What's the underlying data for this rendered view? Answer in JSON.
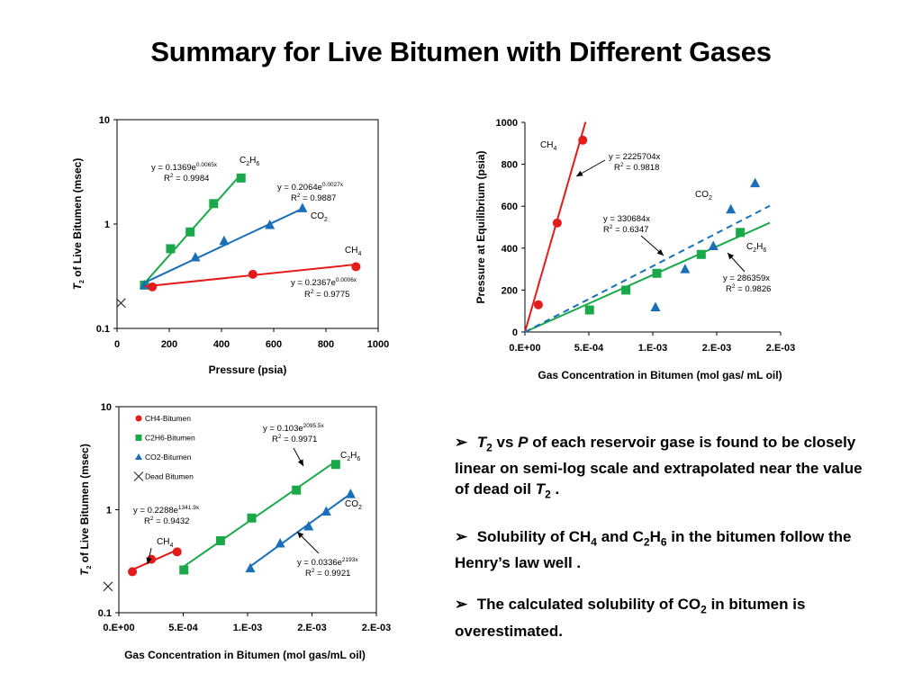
{
  "title": "Summary for Live Bitumen with Different Gases",
  "colors": {
    "CH4": "#e31b1b",
    "C2H6": "#1aa84a",
    "CO2": "#1a6fb8",
    "dead": "#333333"
  },
  "chart_data": [
    {
      "id": "c1",
      "type": "scatter",
      "yscale": "log",
      "xlabel": "Pressure  (psia)",
      "ylabel": "T2 of Live Bitumen  (msec)",
      "xlim": [
        0,
        1000
      ],
      "ylim": [
        0.1,
        10
      ],
      "xticks": [
        "0",
        "200",
        "400",
        "600",
        "800",
        "1000"
      ],
      "yticks": [
        "0.1",
        "1",
        "10"
      ],
      "series": [
        {
          "name": "C2H6",
          "color": "#1aa84a",
          "marker": "square",
          "x": [
            105,
            205,
            280,
            370,
            475
          ],
          "y": [
            0.26,
            0.58,
            0.84,
            1.57,
            2.76
          ],
          "fit": {
            "x": [
              105,
              475
            ],
            "a": 0.1369,
            "b": 0.0065
          }
        },
        {
          "name": "CO2",
          "color": "#1a6fb8",
          "marker": "triangle",
          "x": [
            105,
            300,
            410,
            585,
            710
          ],
          "y": [
            0.26,
            0.48,
            0.69,
            0.98,
            1.42
          ],
          "fit": {
            "x": [
              105,
              710
            ],
            "a": 0.2064,
            "b": 0.0027
          }
        },
        {
          "name": "CH4",
          "color": "#e31b1b",
          "marker": "circle",
          "x": [
            135,
            520,
            915
          ],
          "y": [
            0.25,
            0.33,
            0.39
          ],
          "fit": {
            "x": [
              105,
              915
            ],
            "a": 0.2367,
            "b": 0.0006
          }
        },
        {
          "name": "dead",
          "color": "#333333",
          "marker": "x",
          "x": [
            15
          ],
          "y": [
            0.175
          ]
        }
      ],
      "annotations": [
        {
          "gas": "C2H6",
          "eq_main": "y = 0.1369e",
          "eq_exp": "0.0065x",
          "r2_label": "R",
          "r2_value": " = 0.9984"
        },
        {
          "gas": "CO2",
          "eq_main": "y = 0.2064e",
          "eq_exp": "0.0027x",
          "r2_label": "R",
          "r2_value": " = 0.9887"
        },
        {
          "gas": "CH4",
          "eq_main": "y = 0.2367e",
          "eq_exp": "0.0006x",
          "r2_label": "R",
          "r2_value": " = 0.9775"
        }
      ]
    },
    {
      "id": "c2",
      "type": "scatter",
      "xlabel": "Gas Concentration  in Bitumen (mol gas/ mL oil)",
      "ylabel": "Pressure  at Equilibrium (psia)",
      "xlim": [
        0,
        0.0019
      ],
      "ylim": [
        0,
        1000
      ],
      "xticks": [
        "0.E+00",
        "5.E-04",
        "1.E-03",
        "2.E-03",
        "2.E-03"
      ],
      "yticks": [
        "0",
        "200",
        "400",
        "600",
        "800",
        "1000"
      ],
      "series": [
        {
          "name": "CH4",
          "color": "#e31b1b",
          "marker": "circle",
          "x": [
            0.0001,
            0.00024,
            0.00043
          ],
          "y": [
            130,
            520,
            915
          ]
        },
        {
          "name": "C2H6",
          "color": "#1aa84a",
          "marker": "square",
          "x": [
            0.00048,
            0.00075,
            0.00098,
            0.00131,
            0.0016
          ],
          "y": [
            105,
            200,
            280,
            370,
            475
          ]
        },
        {
          "name": "CO2",
          "color": "#1a6fb8",
          "marker": "triangle",
          "x": [
            0.00097,
            0.00119,
            0.0014,
            0.00153,
            0.00171
          ],
          "y": [
            118,
            300,
            410,
            585,
            710
          ]
        }
      ],
      "fits": [
        {
          "gas": "CH4",
          "slope": 2225704,
          "x_end": 0.00045,
          "dash": false
        },
        {
          "gas": "C2H6",
          "slope": 286359,
          "x_end": 0.00182,
          "dash": false
        },
        {
          "gas": "CO2",
          "slope": 330684,
          "x_end": 0.00182,
          "dash": true
        }
      ],
      "annotations": [
        {
          "gas": "CH4",
          "eq": "y = 2225704x",
          "r2_label": "R",
          "r2_value": " = 0.9818"
        },
        {
          "gas": "CO2",
          "eq": "y = 330684x",
          "r2_label": "R",
          "r2_value": " = 0.6347"
        },
        {
          "gas": "C2H6",
          "eq": "y = 286359x",
          "r2_label": "R",
          "r2_value": " = 0.9826"
        }
      ]
    },
    {
      "id": "c3",
      "type": "scatter",
      "yscale": "log",
      "xlabel": "Gas Concentration  in Bitumen (mol gas/mL oil)",
      "ylabel": "T2 of Live Bitumen (msec)",
      "xlim": [
        0,
        0.0019
      ],
      "ylim": [
        0.1,
        10
      ],
      "xticks": [
        "0.E+00",
        "5.E-04",
        "1.E-03",
        "2.E-03",
        "2.E-03"
      ],
      "yticks": [
        "0.1",
        "1",
        "10"
      ],
      "legend": [
        "CH4-Bitumen",
        "C2H6-Bitumen",
        "CO2-Bitumen",
        "Dead Bitumen"
      ],
      "series": [
        {
          "name": "CH4-Bitumen",
          "color": "#e31b1b",
          "marker": "circle",
          "x": [
            0.0001,
            0.00024,
            0.00043
          ],
          "y": [
            0.25,
            0.33,
            0.39
          ],
          "fit": {
            "x": [
              0.0001,
              0.00043
            ],
            "a": 0.2288,
            "b": 1341.9
          }
        },
        {
          "name": "C2H6-Bitumen",
          "color": "#1aa84a",
          "marker": "square",
          "x": [
            0.00048,
            0.00075,
            0.00098,
            0.00131,
            0.0016
          ],
          "y": [
            0.26,
            0.5,
            0.83,
            1.55,
            2.75
          ],
          "fit": {
            "x": [
              0.00048,
              0.0016
            ],
            "a": 0.103,
            "b": 2095.5
          }
        },
        {
          "name": "CO2-Bitumen",
          "color": "#1a6fb8",
          "marker": "triangle",
          "x": [
            0.00097,
            0.00119,
            0.0014,
            0.00153,
            0.00171
          ],
          "y": [
            0.27,
            0.47,
            0.69,
            0.96,
            1.42
          ],
          "fit": {
            "x": [
              0.00097,
              0.00171
            ],
            "a": 0.0336,
            "b": 2193
          }
        },
        {
          "name": "Dead Bitumen",
          "color": "#333333",
          "marker": "x",
          "x": [
            -8e-05
          ],
          "y": [
            0.18
          ]
        }
      ],
      "annotations": [
        {
          "gas": "C2H6",
          "eq_main": "y = 0.103e",
          "eq_exp": "2095.5x",
          "r2_label": "R",
          "r2_value": " = 0.9971"
        },
        {
          "gas": "CH4",
          "eq_main": "y = 0.2288e",
          "eq_exp": "1341.9x",
          "r2_label": "R",
          "r2_value": " = 0.9432"
        },
        {
          "gas": "CO2",
          "eq_main": "y = 0.0336e",
          "eq_exp": "2193x",
          "r2_label": "R",
          "r2_value": " = 0.9921"
        }
      ]
    }
  ],
  "bullets": [
    {
      "marker": "➢",
      "parts": [
        {
          "t": " "
        },
        {
          "t": "T",
          "style": "i"
        },
        {
          "t": "2",
          "style": "sub"
        },
        {
          "t": " vs "
        },
        {
          "t": "P",
          "style": "i"
        },
        {
          "t": " of each reservoir gase is found to be closely linear on semi-log scale and extrapolated near the value of dead oil "
        },
        {
          "t": "T",
          "style": "i"
        },
        {
          "t": "2",
          "style": "sub"
        },
        {
          "t": " ."
        }
      ]
    },
    {
      "marker": "➢",
      "parts": [
        {
          "t": " Solubility of CH"
        },
        {
          "t": "4",
          "style": "sub"
        },
        {
          "t": " and C"
        },
        {
          "t": "2",
          "style": "sub"
        },
        {
          "t": "H"
        },
        {
          "t": "6",
          "style": "sub"
        },
        {
          "t": " in the bitumen follow the Henry’s law well ."
        }
      ]
    },
    {
      "marker": "➢",
      "parts": [
        {
          "t": " The calculated solubility of CO"
        },
        {
          "t": "2",
          "style": "sub"
        },
        {
          "t": " in bitumen is overestimated."
        }
      ]
    }
  ]
}
